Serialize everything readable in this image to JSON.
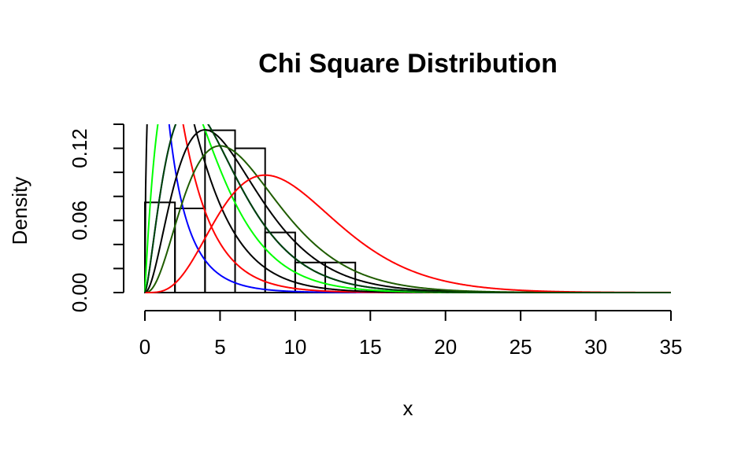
{
  "chart_data": {
    "type": "bar",
    "title": "Chi Square Distribution",
    "xlabel": "x",
    "ylabel": "Density",
    "xlim": [
      0,
      35
    ],
    "ylim": [
      0,
      0.14
    ],
    "x_ticks": [
      "0",
      "5",
      "10",
      "15",
      "20",
      "25",
      "30",
      "35"
    ],
    "y_ticks": [
      "0.00",
      "0.06",
      "0.12"
    ],
    "grid": false,
    "histogram": {
      "bin_edges": [
        0,
        2,
        4,
        6,
        8,
        10,
        12,
        14
      ],
      "densities": [
        0.075,
        0.07,
        0.135,
        0.12,
        0.05,
        0.025,
        0.025
      ]
    },
    "series": [
      {
        "type": "line",
        "df": 1,
        "color": "#0000ff"
      },
      {
        "type": "line",
        "df": 2,
        "color": "#ff0000"
      },
      {
        "type": "line",
        "df": 3,
        "color": "#000000"
      },
      {
        "type": "line",
        "df": 4,
        "color": "#00ff00"
      },
      {
        "type": "line",
        "df": 5,
        "color": "#0000ff"
      },
      {
        "type": "line",
        "df": 6,
        "color": "#000000"
      },
      {
        "type": "line",
        "df": 7,
        "color": "#1f5c00"
      },
      {
        "type": "line",
        "df": 10,
        "color": "#ff0000"
      },
      {
        "type": "line",
        "df": 5,
        "color": "#004400"
      }
    ]
  }
}
